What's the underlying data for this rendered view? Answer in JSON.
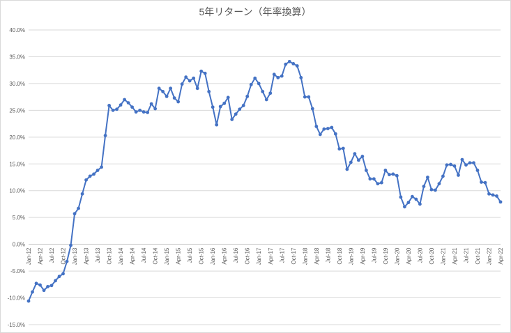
{
  "chart_data": {
    "type": "line",
    "title": "5年リターン（年率換算）",
    "xlabel": "",
    "ylabel": "",
    "ylim": [
      -15,
      40
    ],
    "y_unit": "%",
    "y_ticks": [
      "40.0%",
      "35.0%",
      "30.0%",
      "25.0%",
      "20.0%",
      "15.0%",
      "10.0%",
      "5.0%",
      "0.0%",
      "-5.0%",
      "-10.0%",
      "-15.0%"
    ],
    "y_tick_values": [
      40,
      35,
      30,
      25,
      20,
      15,
      10,
      5,
      0,
      -5,
      -10,
      -15
    ],
    "x_tick_labels": [
      "Jan-12",
      "Apr-12",
      "Jul-12",
      "Oct-12",
      "Jan-13",
      "Apr-13",
      "Jul-13",
      "Oct-13",
      "Jan-14",
      "Apr-14",
      "Jul-14",
      "Oct-14",
      "Jan-15",
      "Apr-15",
      "Jul-15",
      "Oct-15",
      "Jan-16",
      "Apr-16",
      "Jul-16",
      "Oct-16",
      "Jan-17",
      "Apr-17",
      "Jul-17",
      "Oct-17",
      "Jan-18",
      "Apr-18",
      "Jul-18",
      "Oct-18",
      "Jan-19",
      "Apr-19",
      "Jul-19",
      "Oct-19",
      "Jan-20",
      "Apr-20",
      "Jul-20",
      "Oct-20",
      "Jan-21",
      "Apr-21",
      "Jul-21",
      "Oct-21",
      "Jan-22",
      "Apr-22"
    ],
    "grid": true,
    "legend": "none",
    "series_color": "#4472C4",
    "x_start": "Jan-12",
    "x_end": "Apr-22",
    "series": [
      {
        "values": [
          -10.6,
          -8.9,
          -7.3,
          -7.6,
          -8.6,
          -7.9,
          -7.7,
          -6.8,
          -6.0,
          -5.5,
          -3.2,
          -0.2,
          5.7,
          6.7,
          9.4,
          12.0,
          12.7,
          13.1,
          13.8,
          14.4,
          20.3,
          25.9,
          25.0,
          25.2,
          26.0,
          27.0,
          26.4,
          25.6,
          24.7,
          25.0,
          24.7,
          24.6,
          26.2,
          25.3,
          29.1,
          28.5,
          27.6,
          29.1,
          27.3,
          26.6,
          29.9,
          31.2,
          30.5,
          31.0,
          29.1,
          32.3,
          31.9,
          28.5,
          25.6,
          22.3,
          25.7,
          26.3,
          27.4,
          23.3,
          24.3,
          25.2,
          25.9,
          27.6,
          29.8,
          31.0,
          30.0,
          28.5,
          27.0,
          28.2,
          31.7,
          31.1,
          31.4,
          33.6,
          34.1,
          33.7,
          33.3,
          31.1,
          27.5,
          27.5,
          25.3,
          22.0,
          20.5,
          21.5,
          21.6,
          21.8,
          20.6,
          17.8,
          17.9,
          14.0,
          15.3,
          16.9,
          15.7,
          16.4,
          13.8,
          12.2,
          12.2,
          11.3,
          11.5,
          13.8,
          13.0,
          13.1,
          12.8,
          8.8,
          7.0,
          7.8,
          8.9,
          8.4,
          7.5,
          10.8,
          12.5,
          10.2,
          10.1,
          11.3,
          12.7,
          14.8,
          14.9,
          14.6,
          12.9,
          15.8,
          14.8,
          15.2,
          15.2,
          13.8,
          11.6,
          11.5,
          9.4,
          9.2,
          9.0,
          7.9
        ]
      }
    ]
  }
}
